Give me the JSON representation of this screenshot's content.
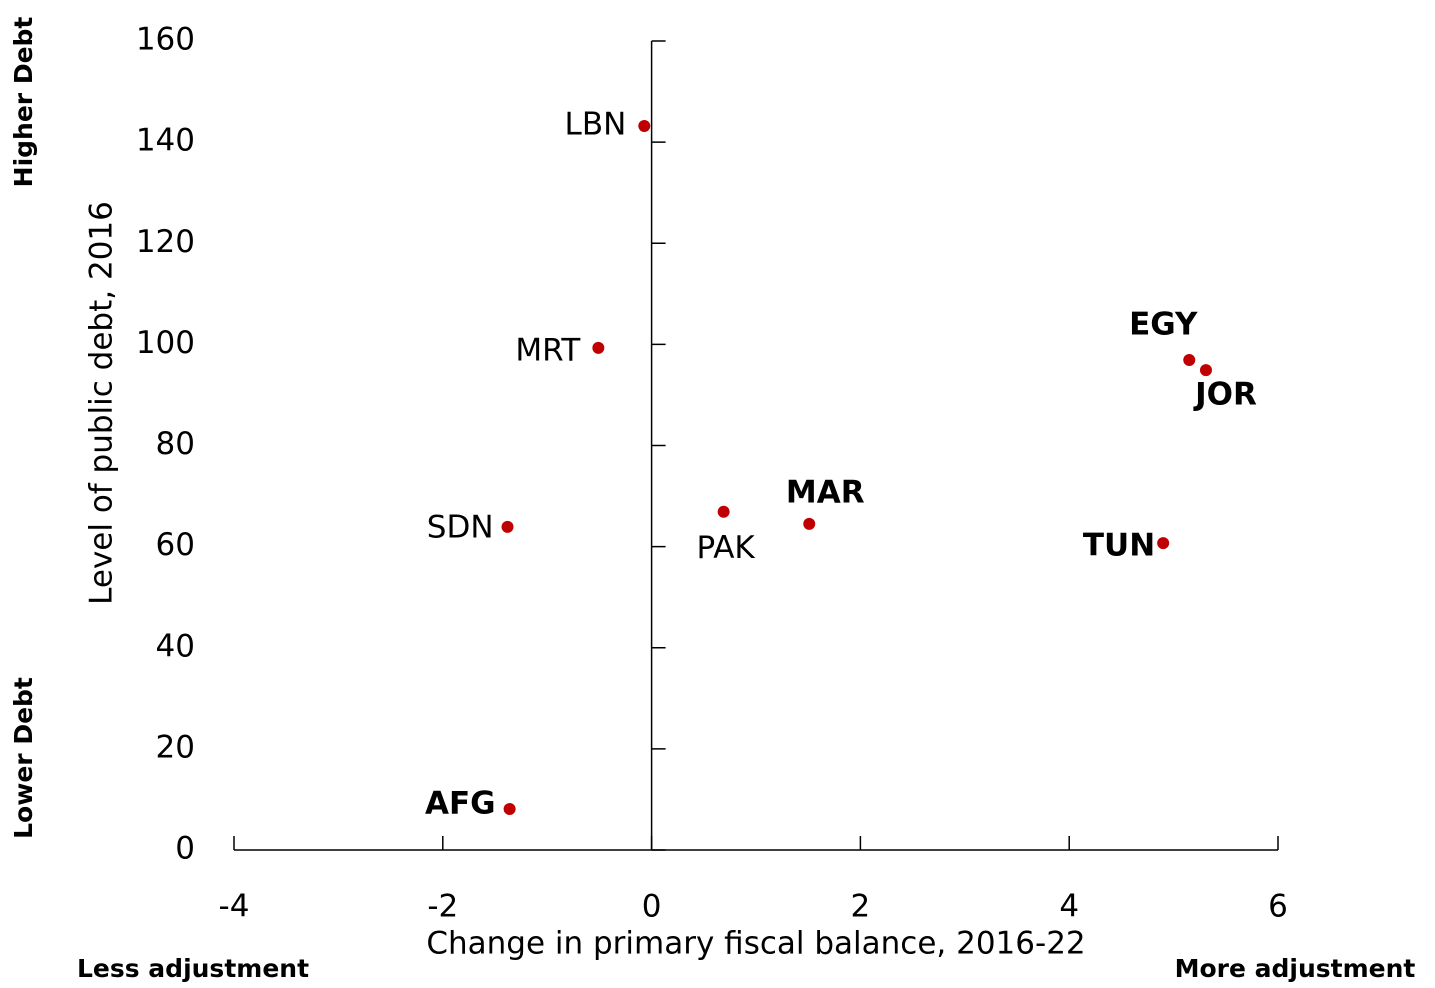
{
  "chart_data": {
    "type": "scatter",
    "xlabel": "Change in primary fiscal balance, 2016-22",
    "ylabel": "Level of public debt, 2016",
    "annotations": [
      "Higher Debt",
      "Lower Debt",
      "Less adjustment",
      "More adjustment"
    ],
    "labels": [
      "LBN",
      "MRT",
      "SDN",
      "AFG",
      "PAK",
      "MAR",
      "EGY",
      "JOR",
      "TUN"
    ],
    "bold": [
      false,
      false,
      false,
      true,
      false,
      true,
      true,
      true,
      true
    ],
    "x": [
      -0.07,
      -0.51,
      -1.38,
      -1.36,
      0.69,
      1.51,
      5.15,
      5.31,
      4.9
    ],
    "values": [
      143.2,
      99.3,
      63.9,
      8.1,
      66.9,
      64.5,
      96.9,
      94.9,
      60.7
    ],
    "color": "#c00000",
    "xlim": [
      -4,
      6
    ],
    "xticks": [
      -4,
      -2,
      0,
      2,
      4,
      6
    ],
    "ylim": [
      0,
      160
    ],
    "yticks": [
      0,
      20,
      40,
      60,
      80,
      100,
      120,
      140,
      160
    ]
  }
}
